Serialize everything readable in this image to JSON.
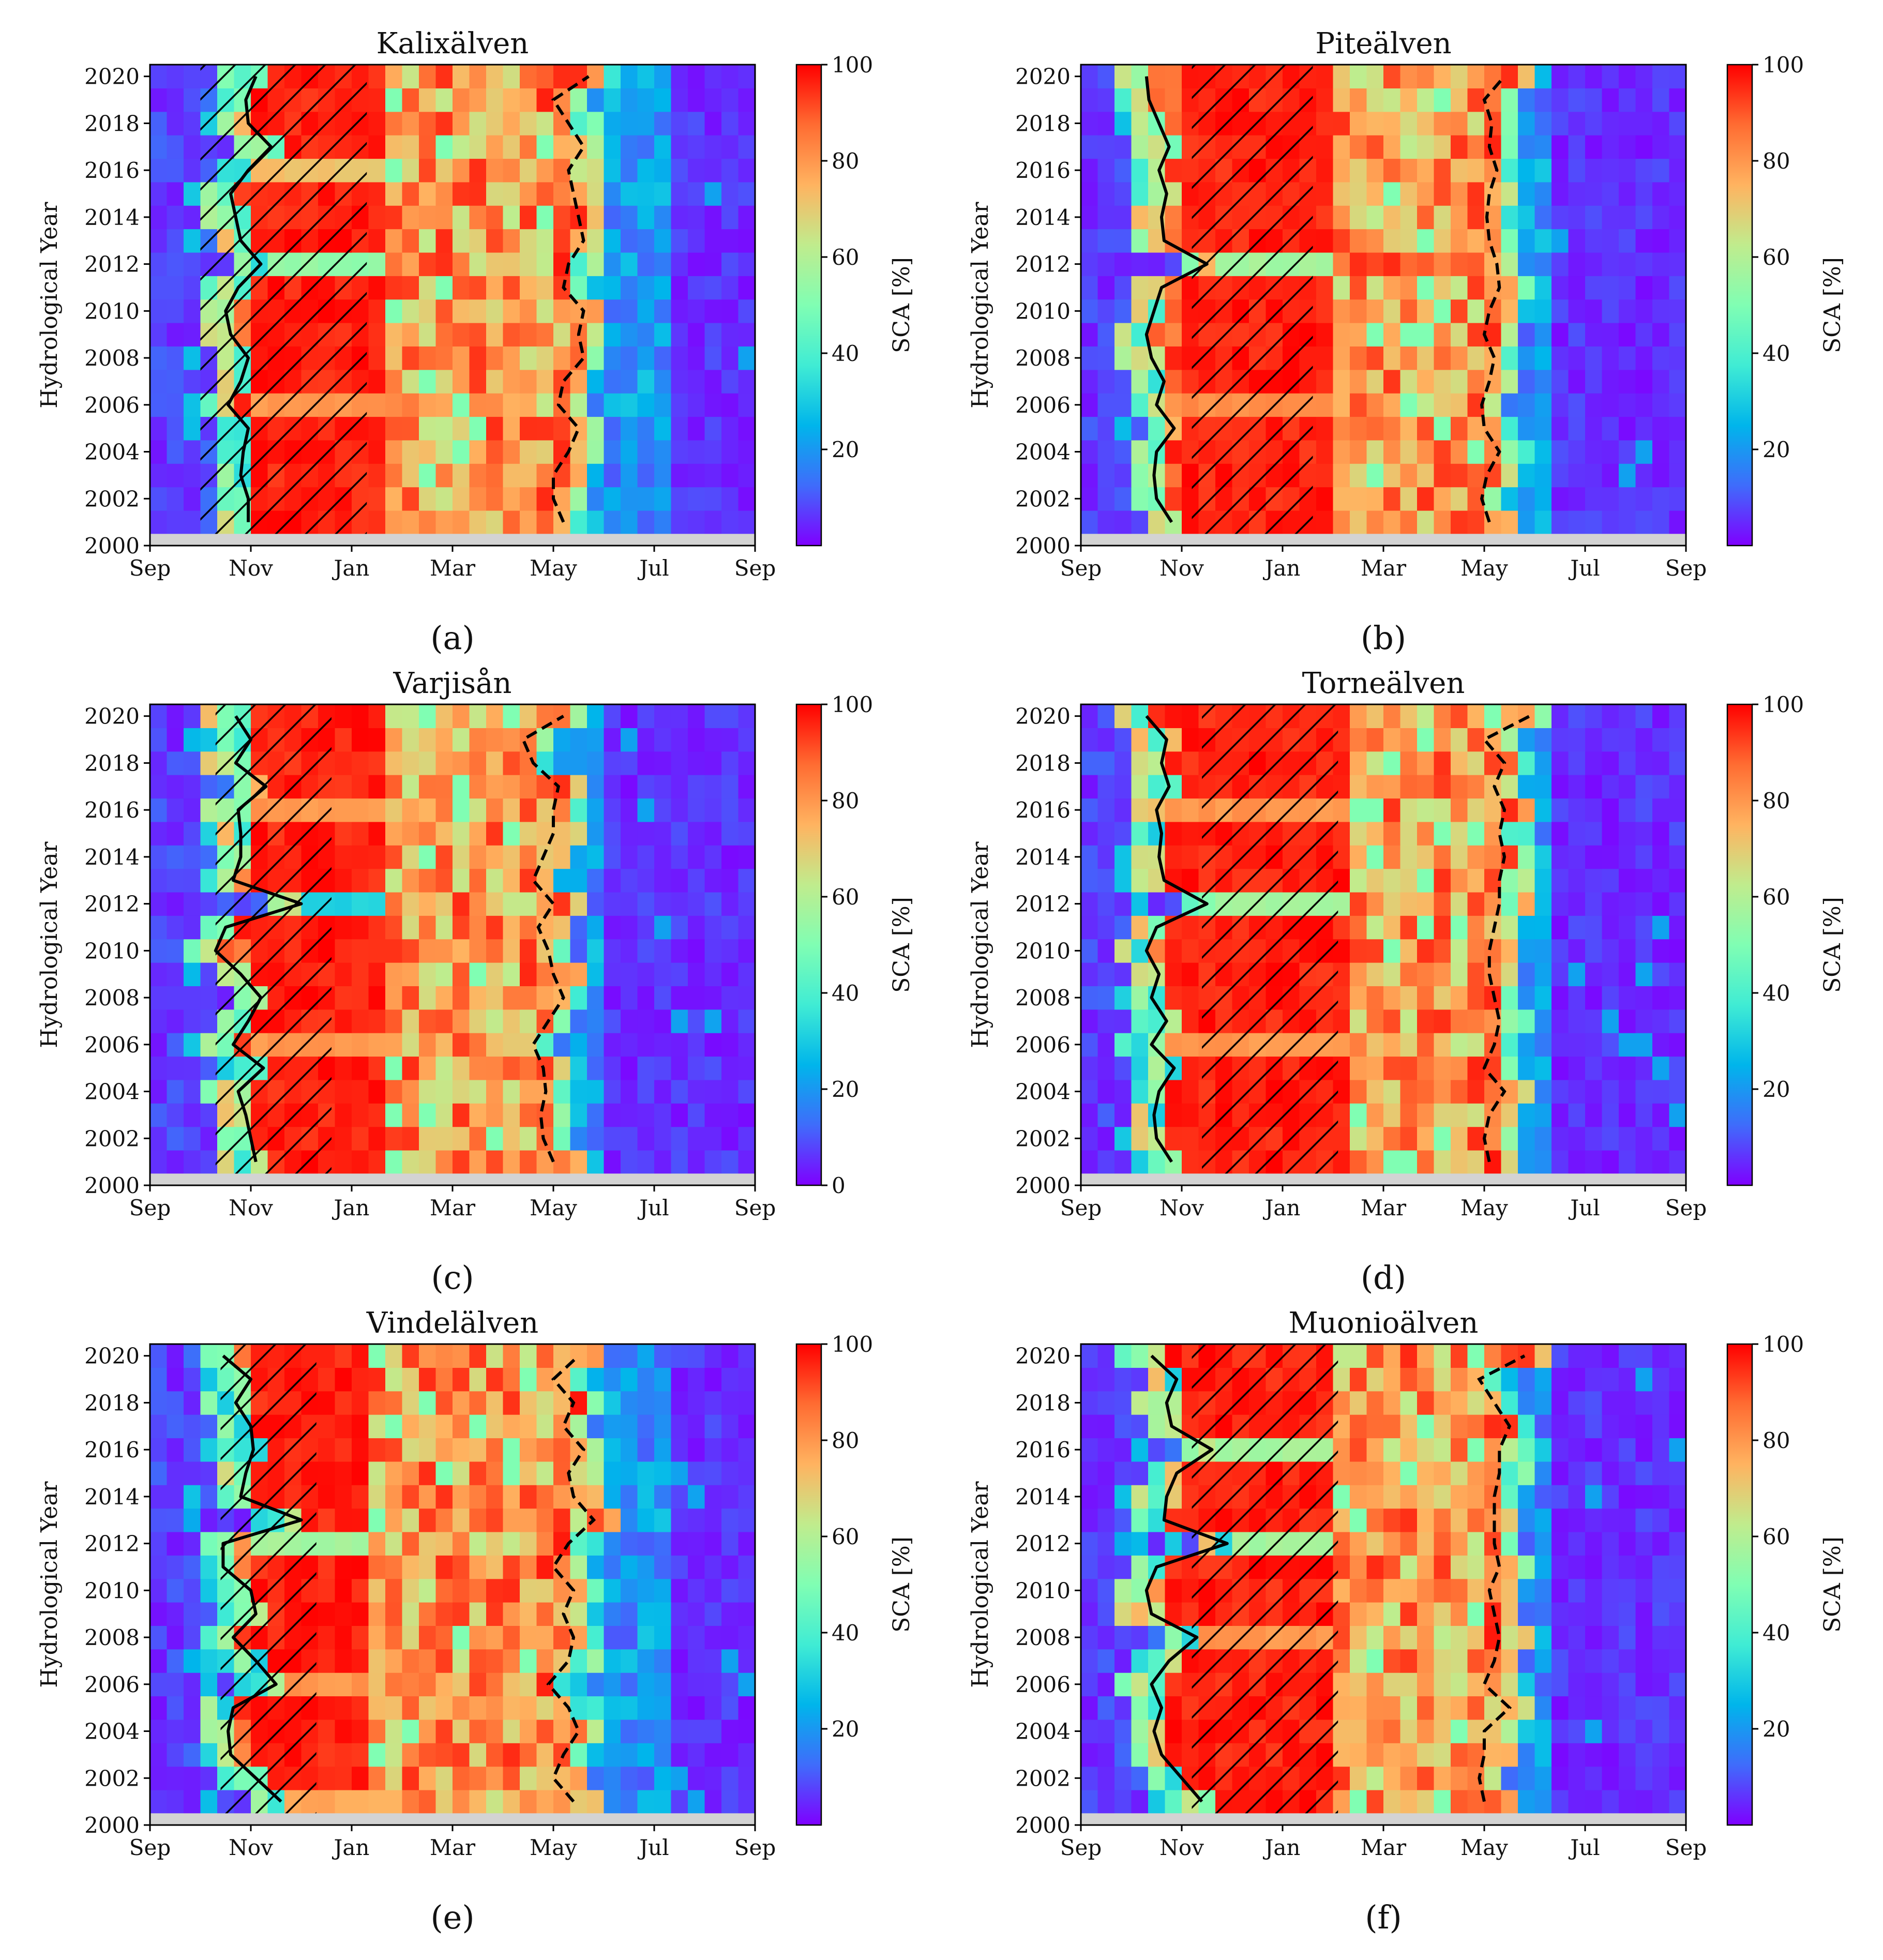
{
  "colors": {
    "colormap": [
      "#7f00ff",
      "#3f6cfb",
      "#00b5eb",
      "#40ecd4",
      "#80feb3",
      "#c0ec8d",
      "#ffb360",
      "#ff6c32",
      "#ff0000"
    ],
    "no_data": "#d3d3d3",
    "line": "#000000"
  },
  "chart_data": [
    {
      "type": "heatmap",
      "panel": "(a)",
      "title": "Kalixälven",
      "xlabel": "",
      "ylabel": "Hydrological Year",
      "colorbar_label": "SCA [%]",
      "xticks": [
        "Sep",
        "Nov",
        "Jan",
        "Mar",
        "May",
        "Jul",
        "Sep"
      ],
      "yticks": [
        "2000",
        "2002",
        "2004",
        "2006",
        "2008",
        "2010",
        "2012",
        "2014",
        "2016",
        "2018",
        "2020"
      ],
      "colorbar_ticks": [
        "20",
        "40",
        "60",
        "80",
        "100"
      ],
      "year_range": [
        2001,
        2020
      ],
      "no_data_year": 2000,
      "full_snow_window_months": [
        2.0,
        4.6
      ],
      "melt_midmonth": 8.4,
      "zero_from_month": 10.4,
      "reduced_years": [
        {
          "year": 2006,
          "value": 78
        },
        {
          "year": 2012,
          "value": 52
        },
        {
          "year": 2016,
          "value": 70
        }
      ],
      "hatch_months": [
        1.0,
        4.3
      ],
      "onset_months": [
        1.95,
        1.95,
        1.8,
        1.85,
        1.95,
        1.55,
        1.8,
        1.95,
        1.6,
        1.5,
        1.75,
        2.2,
        1.8,
        1.7,
        1.6,
        1.95,
        2.4,
        1.95,
        1.9,
        2.1
      ],
      "melt_months": [
        8.2,
        8.0,
        8.0,
        8.3,
        8.5,
        8.1,
        8.2,
        8.6,
        8.5,
        8.6,
        8.2,
        8.3,
        8.6,
        8.5,
        8.4,
        8.3,
        8.6,
        8.3,
        8.0,
        8.7
      ]
    },
    {
      "type": "heatmap",
      "panel": "(b)",
      "title": "Piteälven",
      "xlabel": "",
      "ylabel": "Hydrological Year",
      "colorbar_label": "SCA [%]",
      "xticks": [
        "Sep",
        "Nov",
        "Jan",
        "Mar",
        "May",
        "Jul",
        "Sep"
      ],
      "yticks": [
        "2000",
        "2002",
        "2004",
        "2006",
        "2008",
        "2010",
        "2012",
        "2014",
        "2016",
        "2018",
        "2020"
      ],
      "colorbar_ticks": [
        "20",
        "40",
        "60",
        "80",
        "100"
      ],
      "year_range": [
        2001,
        2020
      ],
      "no_data_year": 2000,
      "full_snow_window_months": [
        1.9,
        4.9
      ],
      "melt_midmonth": 8.1,
      "zero_from_month": 9.4,
      "reduced_years": [
        {
          "year": 2006,
          "value": 80
        },
        {
          "year": 2012,
          "value": 55
        }
      ],
      "hatch_months": [
        2.2,
        4.6
      ],
      "onset_months": [
        1.8,
        1.5,
        1.45,
        1.5,
        1.85,
        1.5,
        1.65,
        1.4,
        1.3,
        1.45,
        1.6,
        2.5,
        1.65,
        1.6,
        1.7,
        1.55,
        1.75,
        1.55,
        1.35,
        1.3
      ],
      "melt_months": [
        8.1,
        7.95,
        8.05,
        8.3,
        8.0,
        7.95,
        8.1,
        8.2,
        8.0,
        8.1,
        8.3,
        8.25,
        8.1,
        8.05,
        8.1,
        8.25,
        8.1,
        8.15,
        8.0,
        8.4
      ]
    },
    {
      "type": "heatmap",
      "panel": "(c)",
      "title": "Varjisån",
      "xlabel": "",
      "ylabel": "Hydrological Year",
      "colorbar_label": "SCA [%]",
      "xticks": [
        "Sep",
        "Nov",
        "Jan",
        "Mar",
        "May",
        "Jul",
        "Sep"
      ],
      "yticks": [
        "2000",
        "2002",
        "2004",
        "2006",
        "2008",
        "2010",
        "2012",
        "2014",
        "2016",
        "2018",
        "2020"
      ],
      "colorbar_ticks": [
        "0",
        "20",
        "40",
        "60",
        "80",
        "100"
      ],
      "year_range": [
        2001,
        2020
      ],
      "no_data_year": 2000,
      "full_snow_window_months": [
        1.9,
        4.6
      ],
      "melt_midmonth": 7.8,
      "zero_from_month": 9.0,
      "reduced_years": [
        {
          "year": 2006,
          "value": 78
        },
        {
          "year": 2012,
          "value": 30
        },
        {
          "year": 2016,
          "value": 78
        }
      ],
      "hatch_months": [
        1.3,
        3.6
      ],
      "onset_months": [
        2.1,
        2.0,
        1.9,
        1.75,
        2.25,
        1.65,
        1.95,
        2.2,
        1.8,
        1.3,
        1.5,
        3.0,
        1.65,
        1.8,
        1.8,
        1.75,
        2.3,
        1.7,
        2.0,
        1.7
      ],
      "melt_months": [
        8.0,
        7.8,
        7.75,
        7.85,
        7.8,
        7.6,
        7.9,
        8.2,
        8.0,
        7.9,
        7.7,
        8.0,
        7.6,
        7.8,
        8.0,
        8.0,
        8.1,
        7.6,
        7.4,
        8.2
      ]
    },
    {
      "type": "heatmap",
      "panel": "(d)",
      "title": "Torneälven",
      "xlabel": "",
      "ylabel": "Hydrological Year",
      "colorbar_label": "SCA [%]",
      "xticks": [
        "Sep",
        "Nov",
        "Jan",
        "Mar",
        "May",
        "Jul",
        "Sep"
      ],
      "yticks": [
        "2000",
        "2002",
        "2004",
        "2006",
        "2008",
        "2010",
        "2012",
        "2014",
        "2016",
        "2018",
        "2020"
      ],
      "colorbar_ticks": [
        "20",
        "40",
        "60",
        "80",
        "100"
      ],
      "year_range": [
        2001,
        2020
      ],
      "no_data_year": 2000,
      "full_snow_window_months": [
        1.8,
        5.2
      ],
      "melt_midmonth": 8.4,
      "zero_from_month": 9.4,
      "reduced_years": [
        {
          "year": 2006,
          "value": 78
        },
        {
          "year": 2012,
          "value": 55
        },
        {
          "year": 2016,
          "value": 78
        }
      ],
      "hatch_months": [
        2.4,
        5.1
      ],
      "onset_months": [
        1.8,
        1.5,
        1.45,
        1.55,
        1.85,
        1.4,
        1.7,
        1.4,
        1.55,
        1.3,
        1.5,
        2.5,
        1.65,
        1.55,
        1.6,
        1.5,
        1.75,
        1.6,
        1.7,
        1.3
      ],
      "melt_months": [
        8.1,
        8.0,
        8.1,
        8.4,
        8.0,
        8.2,
        8.3,
        8.2,
        8.1,
        8.1,
        8.2,
        8.3,
        8.3,
        8.4,
        8.3,
        8.4,
        8.2,
        8.4,
        8.0,
        8.9
      ]
    },
    {
      "type": "heatmap",
      "panel": "(e)",
      "title": "Vindelälven",
      "xlabel": "",
      "ylabel": "Hydrological Year",
      "colorbar_label": "SCA [%]",
      "xticks": [
        "Sep",
        "Nov",
        "Jan",
        "Mar",
        "May",
        "Jul",
        "Sep"
      ],
      "yticks": [
        "2000",
        "2002",
        "2004",
        "2006",
        "2008",
        "2010",
        "2012",
        "2014",
        "2016",
        "2018",
        "2020"
      ],
      "colorbar_ticks": [
        "20",
        "40",
        "60",
        "80",
        "100"
      ],
      "year_range": [
        2001,
        2020
      ],
      "no_data_year": 2000,
      "full_snow_window_months": [
        2.0,
        4.2
      ],
      "melt_midmonth": 8.5,
      "zero_from_month": 10.2,
      "reduced_years": [
        {
          "year": 2001,
          "value": 75
        },
        {
          "year": 2006,
          "value": 78
        },
        {
          "year": 2012,
          "value": 55
        }
      ],
      "hatch_months": [
        1.4,
        3.3
      ],
      "onset_months": [
        2.6,
        2.1,
        1.6,
        1.55,
        1.65,
        2.5,
        2.1,
        1.65,
        2.1,
        2.0,
        1.45,
        1.45,
        3.0,
        1.8,
        1.9,
        2.05,
        2.0,
        1.7,
        2.0,
        1.45
      ],
      "melt_months": [
        8.4,
        8.0,
        8.2,
        8.5,
        8.3,
        7.9,
        8.3,
        8.4,
        8.2,
        8.4,
        8.0,
        8.3,
        8.8,
        8.4,
        8.3,
        8.6,
        8.2,
        8.4,
        8.0,
        8.5
      ]
    },
    {
      "type": "heatmap",
      "panel": "(f)",
      "title": "Muonioälven",
      "xlabel": "",
      "ylabel": "Hydrological Year",
      "colorbar_label": "SCA [%]",
      "xticks": [
        "Sep",
        "Nov",
        "Jan",
        "Mar",
        "May",
        "Jul",
        "Sep"
      ],
      "yticks": [
        "2000",
        "2002",
        "2004",
        "2006",
        "2008",
        "2010",
        "2012",
        "2014",
        "2016",
        "2018",
        "2020"
      ],
      "colorbar_ticks": [
        "20",
        "40",
        "60",
        "80",
        "100"
      ],
      "year_range": [
        2001,
        2020
      ],
      "no_data_year": 2000,
      "full_snow_window_months": [
        1.8,
        5.1
      ],
      "melt_midmonth": 8.5,
      "zero_from_month": 9.4,
      "reduced_years": [
        {
          "year": 2008,
          "value": 78
        },
        {
          "year": 2012,
          "value": 55
        },
        {
          "year": 2016,
          "value": 55
        }
      ],
      "hatch_months": [
        2.2,
        5.1
      ],
      "onset_months": [
        2.4,
        2.0,
        1.6,
        1.45,
        1.6,
        1.4,
        1.75,
        2.3,
        1.4,
        1.3,
        1.5,
        2.9,
        1.65,
        1.7,
        1.9,
        2.6,
        1.8,
        1.7,
        1.9,
        1.4
      ],
      "melt_months": [
        8.0,
        7.9,
        8.0,
        8.0,
        8.5,
        8.0,
        8.2,
        8.3,
        8.2,
        8.1,
        8.3,
        8.2,
        8.2,
        8.2,
        8.3,
        8.3,
        8.5,
        8.2,
        7.9,
        8.8
      ]
    }
  ],
  "captions": [
    "(a)",
    "(b)",
    "(c)",
    "(d)",
    "(e)",
    "(f)"
  ]
}
